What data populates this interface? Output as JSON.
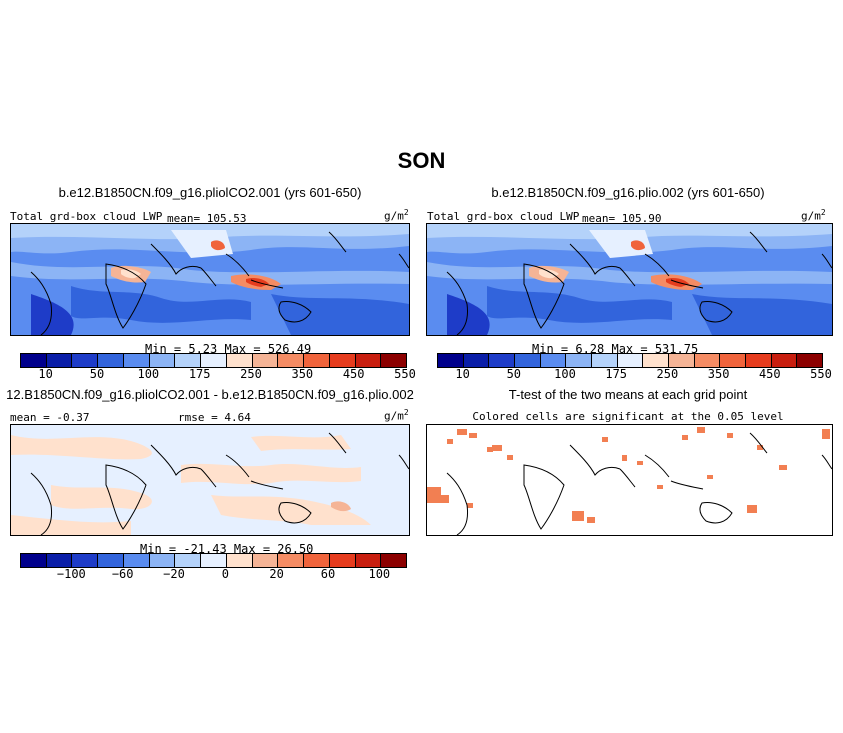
{
  "season_title": "SON",
  "panels": [
    {
      "case_title": "b.e12.B1850CN.f09_g16.pliolCO2.001 (yrs 601-650)",
      "variable_label": "Total grd-box cloud LWP",
      "mean_text": "mean= 105.53",
      "units": "g/m",
      "units_exp": "2",
      "minmax_text": "Min =    5.23  Max =  526.49"
    },
    {
      "case_title": "b.e12.B1850CN.f09_g16.plio.002 (yrs 601-650)",
      "variable_label": "Total grd-box cloud LWP",
      "mean_text": "mean= 105.90",
      "units": "g/m",
      "units_exp": "2",
      "minmax_text": "Min =    6.28  Max =  531.75"
    },
    {
      "case_title": "12.B1850CN.f09_g16.pliolCO2.001 - b.e12.B1850CN.f09_g16.plio.002",
      "mean_text": "mean =  -0.37",
      "rmse_text": "rmse =   4.64",
      "units": "g/m",
      "units_exp": "2",
      "minmax_text": "Min = -21.43  Max =   26.50"
    },
    {
      "case_title": "T-test of the two means at each grid point",
      "subtitle": "Colored cells are significant at the 0.05 level"
    }
  ],
  "colorbar_abs": {
    "colors": [
      "#00008c",
      "#0a1ea8",
      "#1e3cc8",
      "#3264dc",
      "#5a8cf0",
      "#8cb4f5",
      "#b4d2fa",
      "#e6f0ff",
      "#ffe1cd",
      "#f5b496",
      "#f58c64",
      "#f0643c",
      "#e63c1e",
      "#c81e0f",
      "#8c0000"
    ],
    "tick_labels": [
      "10",
      "50",
      "100",
      "175",
      "250",
      "350",
      "450",
      "550"
    ]
  },
  "colorbar_diff": {
    "colors": [
      "#00008c",
      "#0a1ea8",
      "#1e3cc8",
      "#3264dc",
      "#5a8cf0",
      "#8cb4f5",
      "#b4d2fa",
      "#e6f0ff",
      "#ffe1cd",
      "#f5b496",
      "#f58c64",
      "#f0643c",
      "#e63c1e",
      "#c81e0f",
      "#8c0000"
    ],
    "tick_labels": [
      "−100",
      "−60",
      "−20",
      "0",
      "20",
      "60",
      "100"
    ]
  },
  "significance_color": "#f27f52"
}
